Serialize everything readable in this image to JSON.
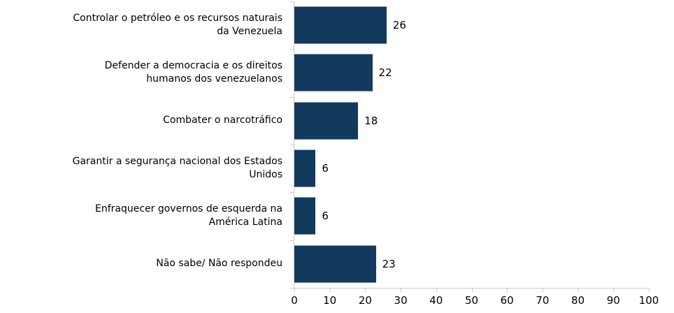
{
  "chart_data": {
    "type": "bar",
    "orientation": "horizontal",
    "title": "",
    "categories": [
      "Controlar o petróleo e os recursos naturais\nda Venezuela",
      "Defender a democracia e os direitos\nhumanos dos venezuelanos",
      "Combater o narcotráfico",
      "Garantir a segurança nacional dos Estados\nUnidos",
      "Enfraquecer governos de esquerda na\nAmérica Latina",
      "Não sabe/ Não respondeu"
    ],
    "values": [
      26,
      22,
      18,
      6,
      6,
      23
    ],
    "value_labels_shown": true,
    "xlabel": "",
    "ylabel": "",
    "xlim": [
      0,
      100
    ],
    "x_ticks": [
      0,
      10,
      20,
      30,
      40,
      50,
      60,
      70,
      80,
      90,
      100
    ],
    "grid": false,
    "legend": "none",
    "bar_color": "#123A5E",
    "axis_color": "#C9C9C9",
    "text_color": "#000000"
  }
}
